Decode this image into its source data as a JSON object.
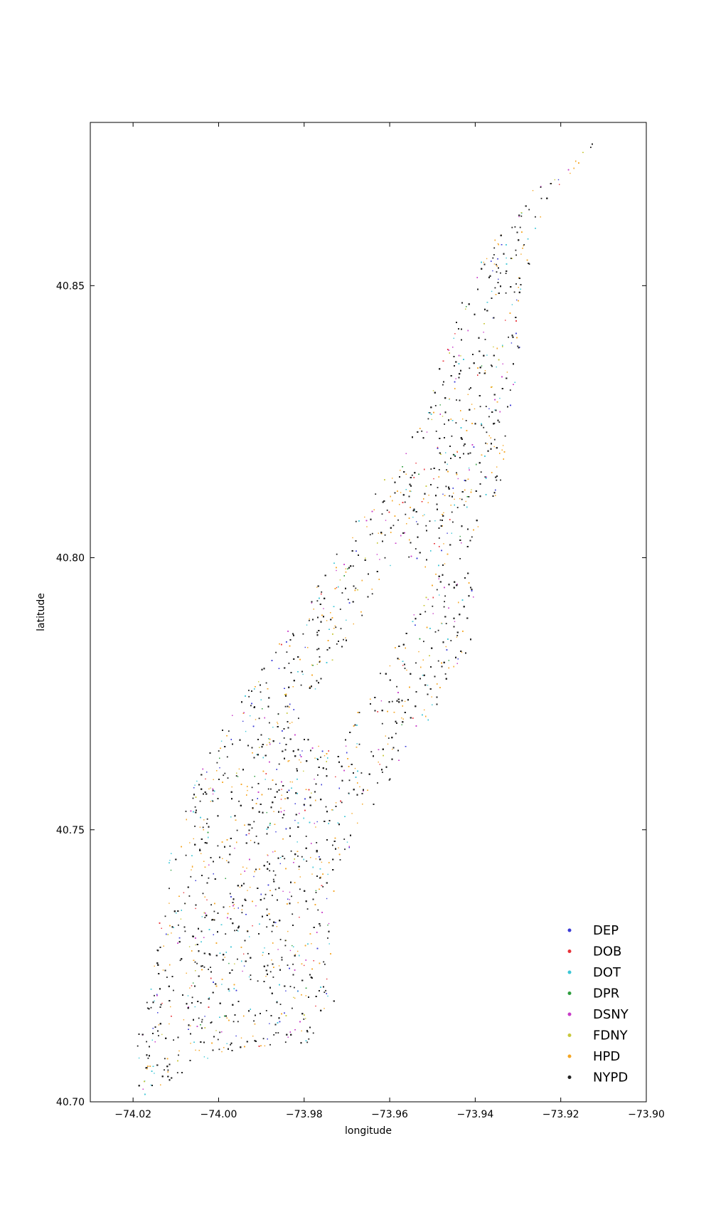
{
  "chart_data": {
    "type": "scatter",
    "title": "",
    "xlabel": "longitude",
    "ylabel": "latitude",
    "xlim": [
      -74.03,
      -73.9
    ],
    "ylim": [
      40.7,
      40.88
    ],
    "xticks": [
      -74.02,
      -74.0,
      -73.98,
      -73.96,
      -73.94,
      -73.92,
      -73.9
    ],
    "xtick_labels": [
      "−74.02",
      "−74.00",
      "−73.98",
      "−73.96",
      "−73.94",
      "−73.92",
      "−73.90"
    ],
    "yticks": [
      40.7,
      40.75,
      40.8,
      40.85
    ],
    "ytick_labels": [
      "40.70",
      "40.75",
      "40.80",
      "40.85"
    ],
    "grid": false,
    "legend_position": "bottom-right",
    "series": [
      {
        "name": "DEP",
        "color": "#3b3bd6"
      },
      {
        "name": "DOB",
        "color": "#e8333a"
      },
      {
        "name": "DOT",
        "color": "#3cc6d6"
      },
      {
        "name": "DPR",
        "color": "#2e9e3e"
      },
      {
        "name": "DSNY",
        "color": "#c83cc8"
      },
      {
        "name": "FDNY",
        "color": "#c8c83c"
      },
      {
        "name": "HPD",
        "color": "#f5a623"
      },
      {
        "name": "NYPD",
        "color": "#222222"
      }
    ],
    "region_outline": [
      [
        -74.018,
        40.701
      ],
      [
        -74.012,
        40.703
      ],
      [
        -74.006,
        40.707
      ],
      [
        -73.999,
        40.709
      ],
      [
        -73.99,
        40.71
      ],
      [
        -73.978,
        40.711
      ],
      [
        -73.973,
        40.718
      ],
      [
        -73.974,
        40.732
      ],
      [
        -73.972,
        40.743
      ],
      [
        -73.966,
        40.752
      ],
      [
        -73.958,
        40.762
      ],
      [
        -73.95,
        40.771
      ],
      [
        -73.942,
        40.781
      ],
      [
        -73.94,
        40.79
      ],
      [
        -73.942,
        40.801
      ],
      [
        -73.935,
        40.809
      ],
      [
        -73.933,
        40.82
      ],
      [
        -73.93,
        40.835
      ],
      [
        -73.928,
        40.852
      ],
      [
        -73.925,
        40.862
      ],
      [
        -73.918,
        40.872
      ],
      [
        -73.912,
        40.877
      ],
      [
        -73.915,
        40.871
      ],
      [
        -73.922,
        40.87
      ],
      [
        -73.928,
        40.867
      ],
      [
        -73.937,
        40.858
      ],
      [
        -73.944,
        40.846
      ],
      [
        -73.949,
        40.834
      ],
      [
        -73.955,
        40.823
      ],
      [
        -73.962,
        40.814
      ],
      [
        -73.972,
        40.802
      ],
      [
        -73.981,
        40.79
      ],
      [
        -73.99,
        40.78
      ],
      [
        -73.999,
        40.769
      ],
      [
        -74.007,
        40.757
      ],
      [
        -74.012,
        40.745
      ],
      [
        -74.014,
        40.733
      ],
      [
        -74.016,
        40.721
      ],
      [
        -74.019,
        40.713
      ],
      [
        -74.02,
        40.706
      ]
    ],
    "empty_region_central_park": [
      [
        -73.9583,
        40.8006
      ],
      [
        -73.9493,
        40.7968
      ],
      [
        -73.973,
        40.7644
      ],
      [
        -73.9819,
        40.7681
      ]
    ],
    "point_density": "dense"
  }
}
